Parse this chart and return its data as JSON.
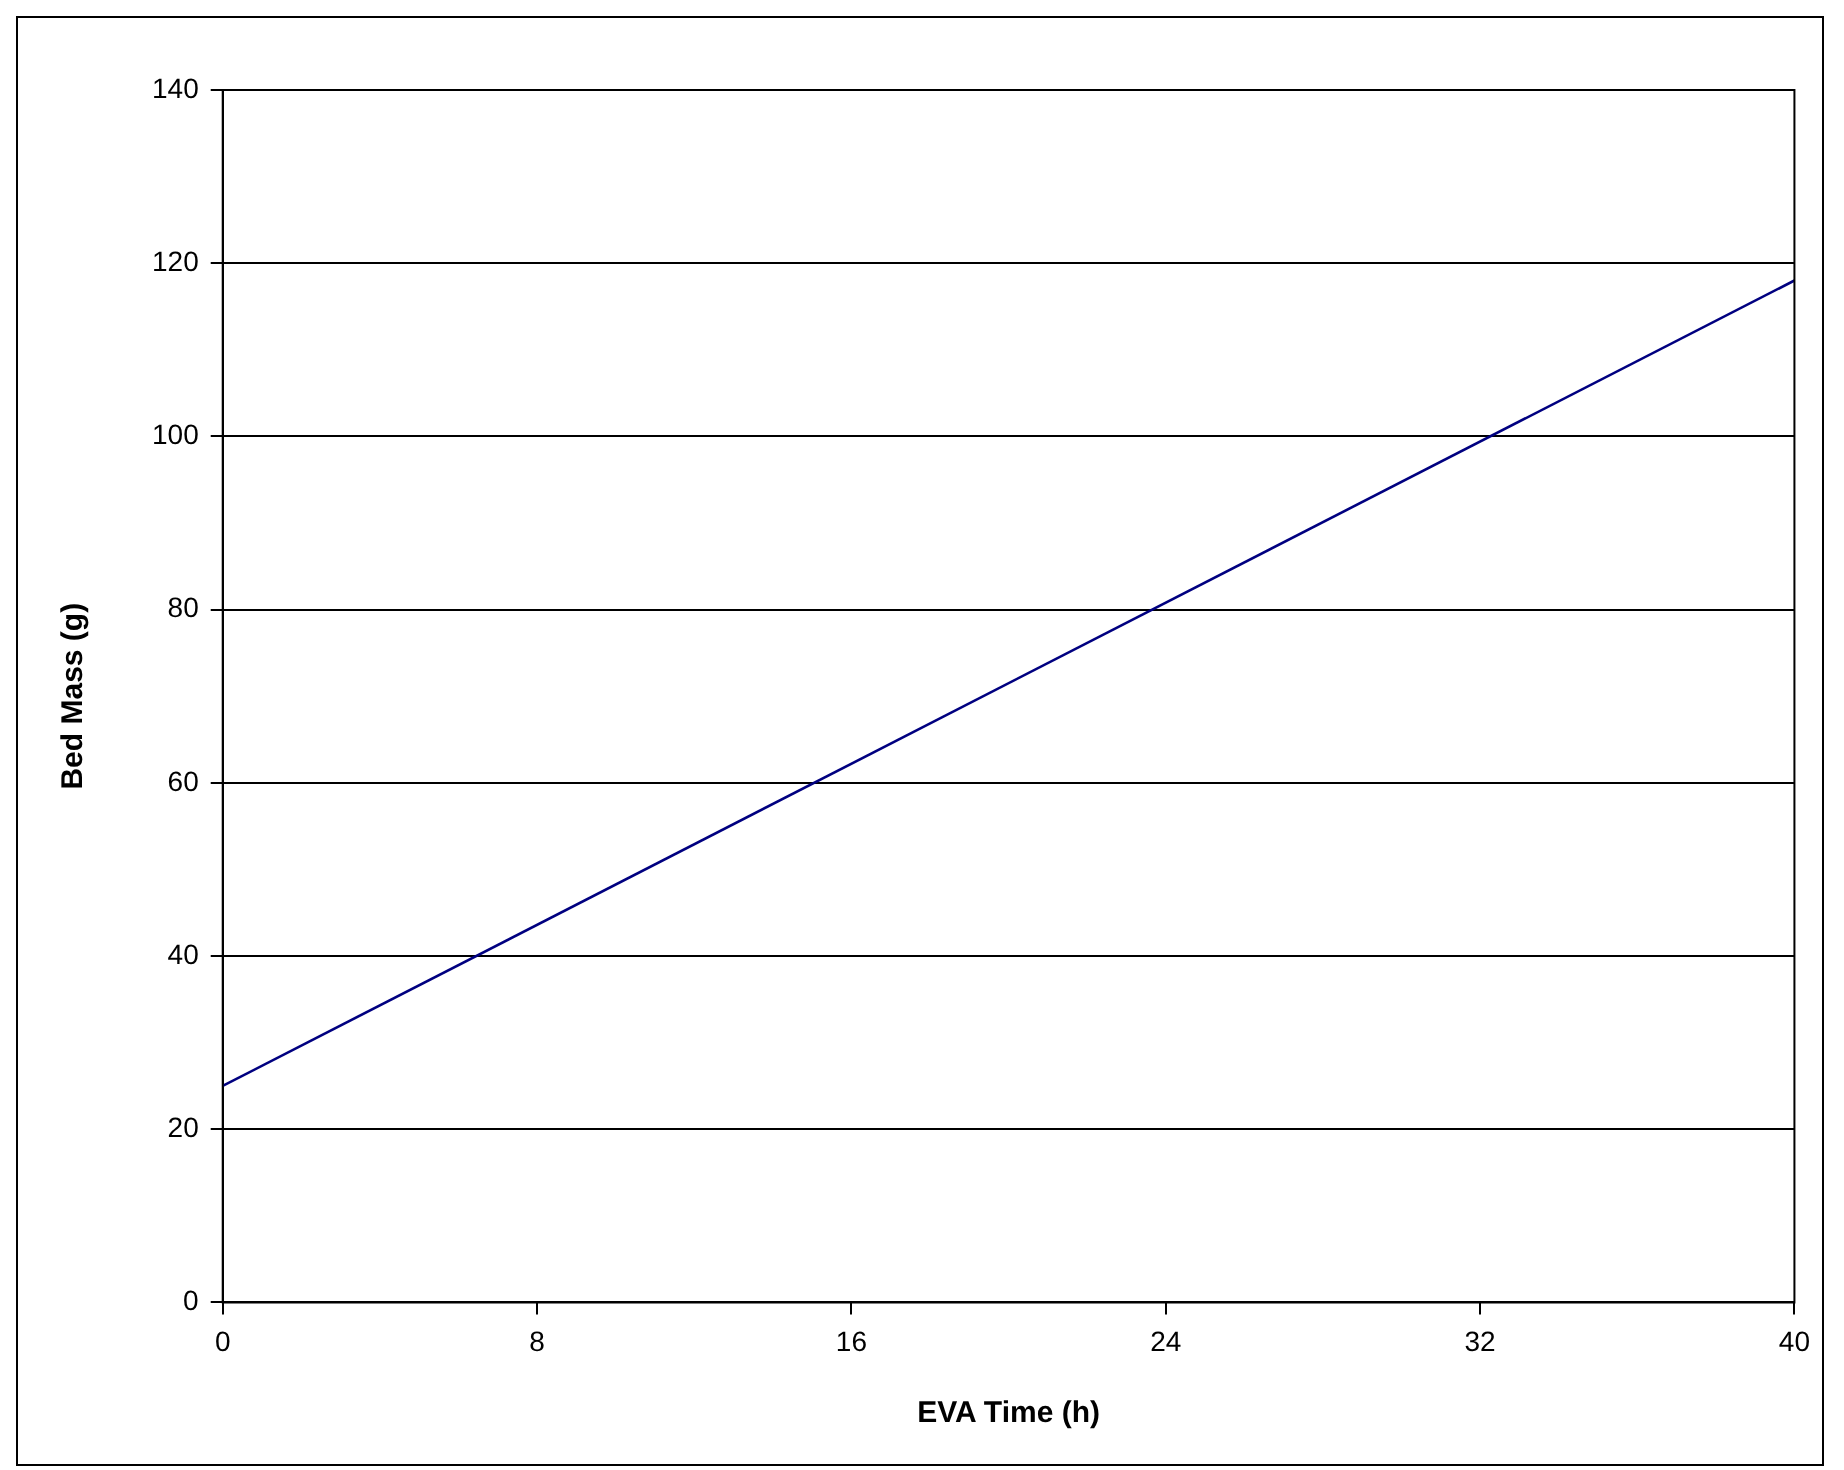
{
  "chart_data": {
    "type": "line",
    "xlabel": "EVA Time (h)",
    "ylabel": "Bed Mass (g)",
    "x": [
      0,
      40
    ],
    "series": [
      {
        "color": "#000080",
        "values": [
          25,
          118
        ]
      }
    ],
    "xlim": [
      0,
      40
    ],
    "xticks": [
      0,
      8,
      16,
      24,
      32,
      40
    ],
    "ylim": [
      0,
      140
    ],
    "yticks": [
      0,
      20,
      40,
      60,
      80,
      100,
      120,
      140
    ],
    "grid": "y",
    "legend": false,
    "marker": "none",
    "line_style": "solid"
  }
}
